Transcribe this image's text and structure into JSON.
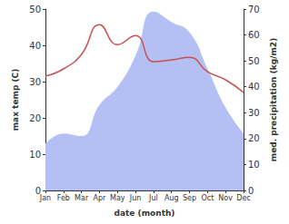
{
  "chart_data": {
    "type": "line",
    "xlabel": "date (month)",
    "ylabel": "max temp (C)",
    "y2label": "med. precipitation (kg/m2)",
    "categories": [
      "Jan",
      "Feb",
      "Mar",
      "Apr",
      "May",
      "Jun",
      "Jul",
      "Aug",
      "Sep",
      "Oct",
      "Nov",
      "Dec"
    ],
    "series": [
      {
        "type": "area",
        "axis": "y2",
        "color": "#b4c0f4",
        "values": [
          18,
          22,
          21,
          33,
          40,
          52,
          69,
          65,
          61,
          47,
          32,
          22
        ]
      },
      {
        "type": "line",
        "color": "#c8504f",
        "values": [
          31.5,
          33.5,
          37.5,
          45.7,
          40.2,
          42.7,
          35.5,
          36,
          36.7,
          32.7,
          30.5,
          27
        ]
      }
    ],
    "ylim": [
      0,
      50
    ],
    "yticks": [
      0,
      10,
      20,
      30,
      40,
      50
    ],
    "y2lim": [
      0,
      70
    ],
    "y2ticks": [
      0,
      10,
      20,
      30,
      40,
      50,
      60,
      70
    ],
    "grid": false
  }
}
